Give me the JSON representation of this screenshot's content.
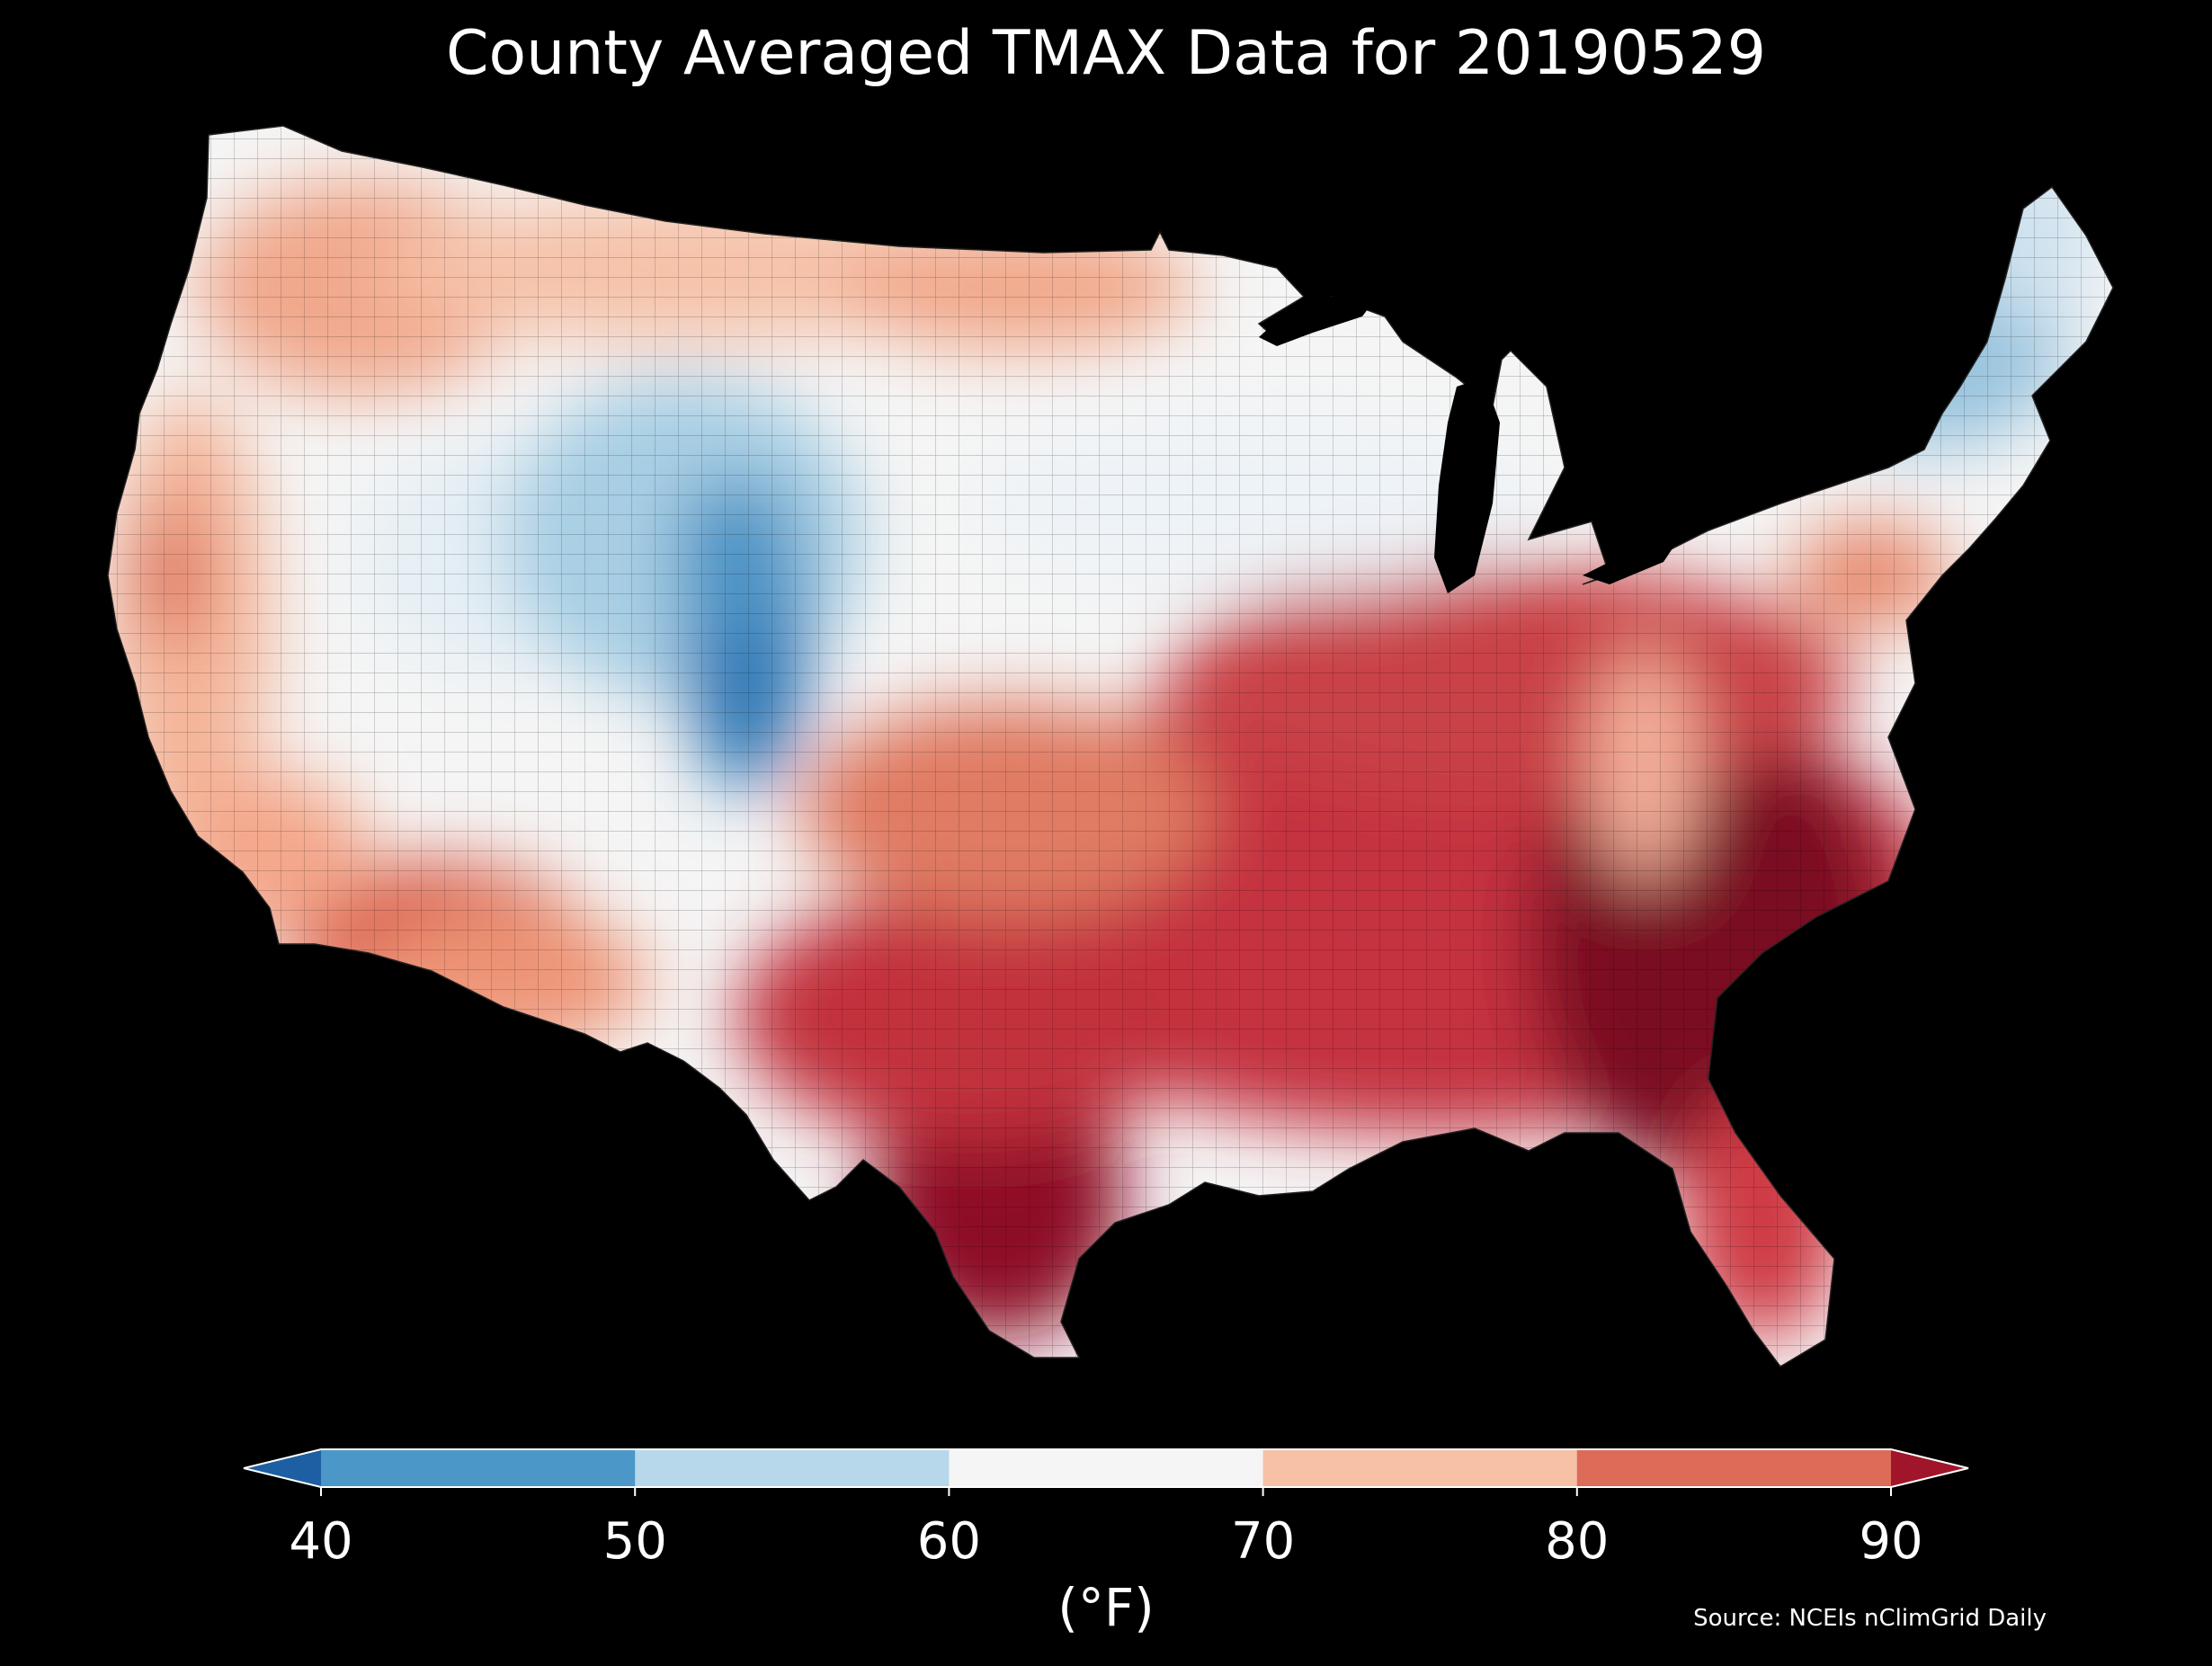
{
  "figure": {
    "title": "County Averaged TMAX Data for 20190529",
    "source": "Source: NCEIs nClimGrid Daily",
    "background": "#000000"
  },
  "colorbar": {
    "unit_label": "(°F)",
    "ticks": [
      "40",
      "50",
      "60",
      "70",
      "80",
      "90"
    ],
    "extend": "both",
    "outline_color": "#ffffff",
    "bins": [
      {
        "range": "<40",
        "color": "#1d5fa2"
      },
      {
        "range": "40-50",
        "color": "#4b98c8"
      },
      {
        "range": "50-60",
        "color": "#b7d8ea"
      },
      {
        "range": "60-70",
        "color": "#f5f5f5"
      },
      {
        "range": "70-80",
        "color": "#f7c1a6"
      },
      {
        "range": "80-90",
        "color": "#dc6b58"
      },
      {
        "range": ">90",
        "color": "#a01529"
      }
    ]
  },
  "map": {
    "region": "Contiguous United States",
    "level": "county",
    "variable": "TMAX",
    "date": "20190529",
    "pattern": [
      {
        "area": "Pacific coast",
        "bin": "70-80"
      },
      {
        "area": "Sacramento Valley",
        "bin": "80-90"
      },
      {
        "area": "Desert Southwest",
        "bin": "80-90"
      },
      {
        "area": "Northern Rockies",
        "bin": "70-80"
      },
      {
        "area": "Great Basin",
        "bin": "60-70"
      },
      {
        "area": "Colorado Rockies",
        "bin": "40-50"
      },
      {
        "area": "Central Plains",
        "bin": "60-70"
      },
      {
        "area": "Upper Midwest",
        "bin": "60-70"
      },
      {
        "area": "Northern New England",
        "bin": "50-60"
      },
      {
        "area": "Ohio Valley",
        "bin": "80-90"
      },
      {
        "area": "Appalachians",
        "bin": "70-80"
      },
      {
        "area": "Southeast",
        "bin": ">90"
      },
      {
        "area": "South Texas",
        "bin": ">90"
      },
      {
        "area": "Gulf Coast",
        "bin": "80-90"
      },
      {
        "area": "Florida",
        "bin": "80-90"
      }
    ]
  }
}
